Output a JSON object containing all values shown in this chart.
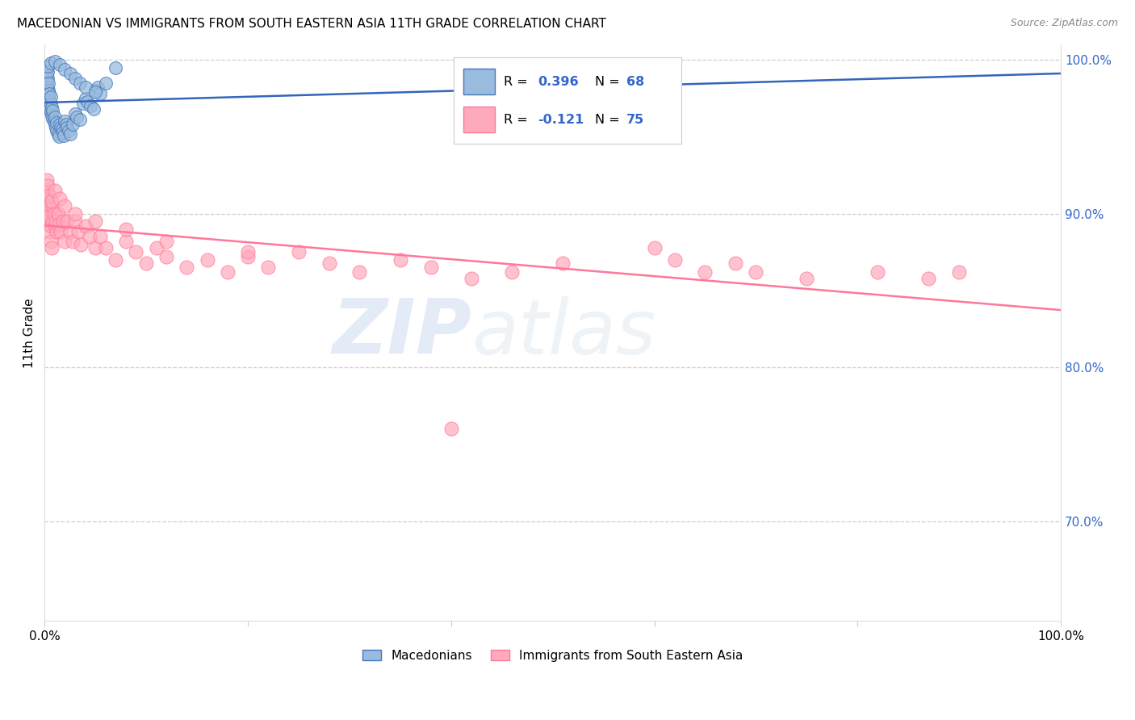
{
  "title": "MACEDONIAN VS IMMIGRANTS FROM SOUTH EASTERN ASIA 11TH GRADE CORRELATION CHART",
  "source": "Source: ZipAtlas.com",
  "ylabel": "11th Grade",
  "legend_label1": "Macedonians",
  "legend_label2": "Immigrants from South Eastern Asia",
  "r1_text": "R = 0.396",
  "n1_text": "N = 68",
  "r2_text": "R = -0.121",
  "n2_text": "N = 75",
  "xlim": [
    0.0,
    1.0
  ],
  "ylim": [
    0.635,
    1.01
  ],
  "color_blue": "#99BBDD",
  "color_blue_edge": "#4477BB",
  "color_blue_line": "#3366BB",
  "color_pink": "#FFAABB",
  "color_pink_edge": "#FF7799",
  "color_pink_line": "#FF7799",
  "color_r_blue": "#3366CC",
  "color_r_pink": "#FF4488",
  "watermark_zip": "ZIP",
  "watermark_atlas": "atlas",
  "blue_x": [
    0.001,
    0.001,
    0.002,
    0.002,
    0.002,
    0.002,
    0.002,
    0.003,
    0.003,
    0.003,
    0.003,
    0.003,
    0.004,
    0.004,
    0.004,
    0.004,
    0.005,
    0.005,
    0.005,
    0.006,
    0.006,
    0.006,
    0.007,
    0.007,
    0.008,
    0.008,
    0.009,
    0.01,
    0.01,
    0.011,
    0.012,
    0.012,
    0.013,
    0.014,
    0.015,
    0.016,
    0.017,
    0.018,
    0.019,
    0.02,
    0.021,
    0.022,
    0.024,
    0.025,
    0.028,
    0.03,
    0.032,
    0.035,
    0.038,
    0.04,
    0.042,
    0.045,
    0.048,
    0.05,
    0.052,
    0.055,
    0.06,
    0.07,
    0.003,
    0.006,
    0.01,
    0.015,
    0.02,
    0.025,
    0.03,
    0.035,
    0.04,
    0.05
  ],
  "blue_y": [
    0.978,
    0.983,
    0.975,
    0.979,
    0.985,
    0.99,
    0.993,
    0.972,
    0.977,
    0.982,
    0.988,
    0.992,
    0.97,
    0.975,
    0.98,
    0.985,
    0.968,
    0.973,
    0.978,
    0.966,
    0.971,
    0.976,
    0.964,
    0.969,
    0.962,
    0.967,
    0.96,
    0.958,
    0.963,
    0.956,
    0.954,
    0.959,
    0.952,
    0.95,
    0.958,
    0.956,
    0.955,
    0.953,
    0.951,
    0.96,
    0.958,
    0.956,
    0.954,
    0.952,
    0.958,
    0.965,
    0.963,
    0.961,
    0.972,
    0.975,
    0.973,
    0.97,
    0.968,
    0.98,
    0.982,
    0.978,
    0.985,
    0.995,
    0.996,
    0.998,
    0.999,
    0.997,
    0.994,
    0.991,
    0.988,
    0.985,
    0.982,
    0.979
  ],
  "pink_x": [
    0.001,
    0.002,
    0.002,
    0.003,
    0.003,
    0.004,
    0.004,
    0.005,
    0.005,
    0.006,
    0.006,
    0.007,
    0.008,
    0.008,
    0.009,
    0.01,
    0.011,
    0.012,
    0.013,
    0.014,
    0.016,
    0.018,
    0.02,
    0.022,
    0.025,
    0.028,
    0.03,
    0.033,
    0.036,
    0.04,
    0.044,
    0.05,
    0.055,
    0.06,
    0.07,
    0.08,
    0.09,
    0.1,
    0.11,
    0.12,
    0.14,
    0.16,
    0.18,
    0.2,
    0.22,
    0.25,
    0.28,
    0.31,
    0.35,
    0.38,
    0.42,
    0.46,
    0.51,
    0.6,
    0.62,
    0.65,
    0.68,
    0.7,
    0.75,
    0.82,
    0.87,
    0.9,
    0.002,
    0.003,
    0.005,
    0.007,
    0.01,
    0.015,
    0.02,
    0.03,
    0.05,
    0.08,
    0.12,
    0.2,
    0.4
  ],
  "pink_y": [
    0.91,
    0.905,
    0.915,
    0.9,
    0.908,
    0.895,
    0.905,
    0.888,
    0.898,
    0.882,
    0.892,
    0.878,
    0.905,
    0.895,
    0.9,
    0.892,
    0.895,
    0.888,
    0.9,
    0.893,
    0.888,
    0.895,
    0.882,
    0.895,
    0.888,
    0.882,
    0.895,
    0.888,
    0.88,
    0.892,
    0.885,
    0.878,
    0.885,
    0.878,
    0.87,
    0.882,
    0.875,
    0.868,
    0.878,
    0.872,
    0.865,
    0.87,
    0.862,
    0.872,
    0.865,
    0.875,
    0.868,
    0.862,
    0.87,
    0.865,
    0.858,
    0.862,
    0.868,
    0.878,
    0.87,
    0.862,
    0.868,
    0.862,
    0.858,
    0.862,
    0.858,
    0.862,
    0.922,
    0.918,
    0.912,
    0.908,
    0.915,
    0.91,
    0.905,
    0.9,
    0.895,
    0.89,
    0.882,
    0.875,
    0.76
  ],
  "trend_blue_start_y": 0.955,
  "trend_blue_end_y": 0.998,
  "trend_pink_start_y": 0.905,
  "trend_pink_end_y": 0.858
}
